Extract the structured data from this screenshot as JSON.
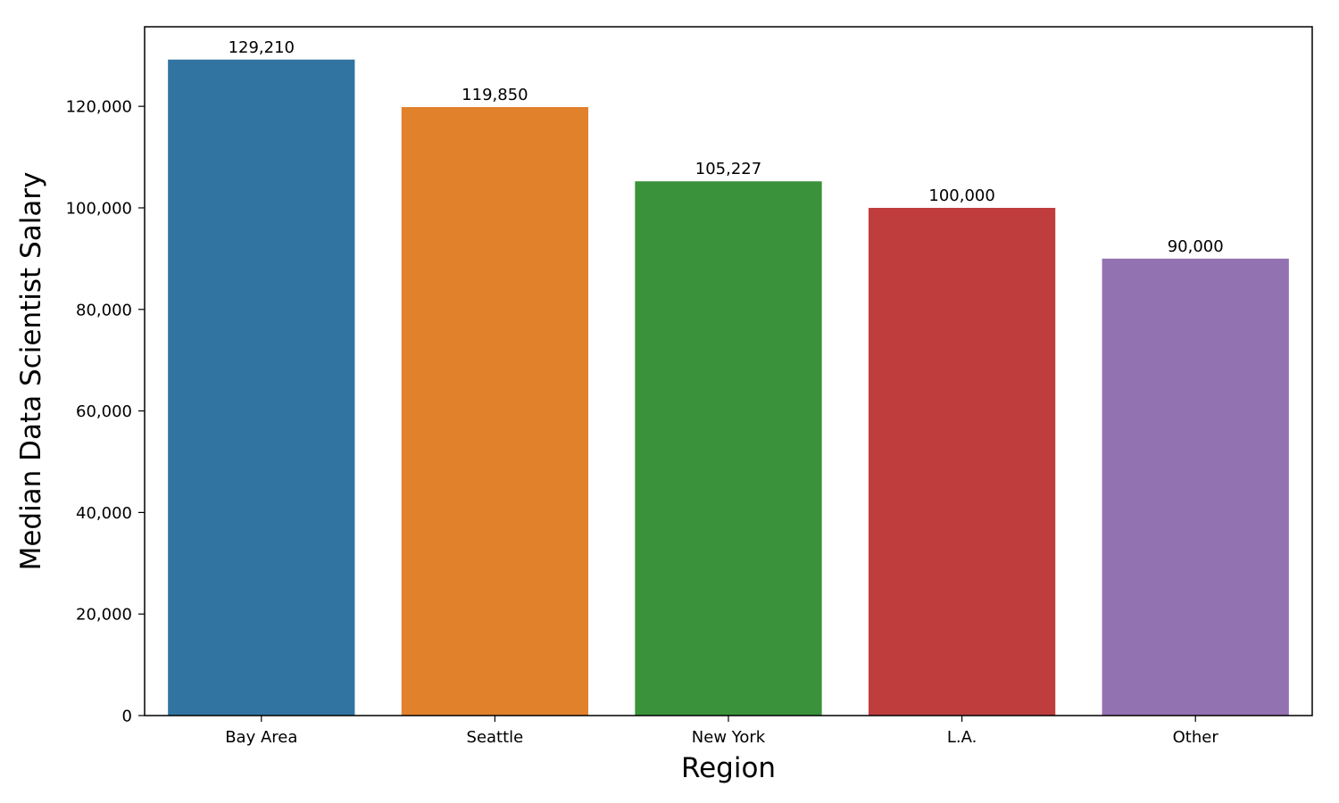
{
  "chart_data": {
    "type": "bar",
    "categories": [
      "Bay Area",
      "Seattle",
      "New York",
      "L.A.",
      "Other"
    ],
    "values": [
      129210,
      119850,
      105227,
      100000,
      90000
    ],
    "value_labels": [
      "129,210",
      "119,850",
      "105,227",
      "100,000",
      "90,000"
    ],
    "colors": [
      "#3274a1",
      "#e1812c",
      "#3a923a",
      "#c03d3e",
      "#9372b2"
    ],
    "xlabel": "Region",
    "ylabel": "Median Data Scientist Salary",
    "ylim": [
      0,
      135670
    ],
    "yticks": [
      0,
      20000,
      40000,
      60000,
      80000,
      100000,
      120000
    ],
    "ytick_labels": [
      "0",
      "20,000",
      "40,000",
      "60,000",
      "80,000",
      "100,000",
      "120,000"
    ],
    "grid": false,
    "legend": "none"
  }
}
